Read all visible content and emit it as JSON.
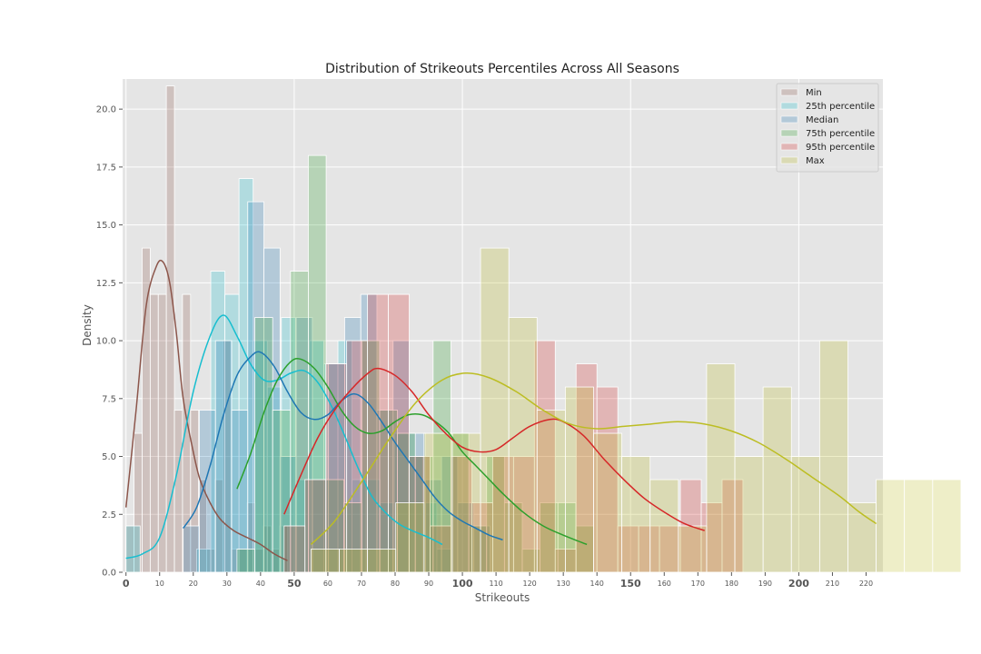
{
  "chart_data": {
    "type": "histogram",
    "title": "Distribution of Strikeouts Percentiles Across All Seasons",
    "xlabel": "Strikeouts",
    "ylabel": "Density",
    "xlim": [
      -1,
      225
    ],
    "ylim": [
      0,
      21.3
    ],
    "grid": true,
    "legend_position": "top-right",
    "x_ticks": [
      {
        "value": 0,
        "label": "0",
        "bold": true
      },
      {
        "value": 10,
        "label": "10",
        "bold": false
      },
      {
        "value": 20,
        "label": "20",
        "bold": false
      },
      {
        "value": 30,
        "label": "30",
        "bold": false
      },
      {
        "value": 40,
        "label": "40",
        "bold": false
      },
      {
        "value": 50,
        "label": "50",
        "bold": true
      },
      {
        "value": 60,
        "label": "60",
        "bold": false
      },
      {
        "value": 70,
        "label": "70",
        "bold": false
      },
      {
        "value": 80,
        "label": "80",
        "bold": false
      },
      {
        "value": 90,
        "label": "90",
        "bold": false
      },
      {
        "value": 100,
        "label": "100",
        "bold": true
      },
      {
        "value": 110,
        "label": "110",
        "bold": false
      },
      {
        "value": 120,
        "label": "120",
        "bold": false
      },
      {
        "value": 130,
        "label": "130",
        "bold": false
      },
      {
        "value": 140,
        "label": "140",
        "bold": false
      },
      {
        "value": 150,
        "label": "150",
        "bold": true
      },
      {
        "value": 160,
        "label": "160",
        "bold": false
      },
      {
        "value": 170,
        "label": "170",
        "bold": false
      },
      {
        "value": 180,
        "label": "180",
        "bold": false
      },
      {
        "value": 190,
        "label": "190",
        "bold": false
      },
      {
        "value": 200,
        "label": "200",
        "bold": true
      },
      {
        "value": 210,
        "label": "210",
        "bold": false
      },
      {
        "value": 220,
        "label": "220",
        "bold": false
      }
    ],
    "y_ticks": [
      {
        "value": 0,
        "label": "0.0"
      },
      {
        "value": 2.5,
        "label": "2.5"
      },
      {
        "value": 5,
        "label": "5.0"
      },
      {
        "value": 7.5,
        "label": "7.5"
      },
      {
        "value": 10,
        "label": "10.0"
      },
      {
        "value": 12.5,
        "label": "12.5"
      },
      {
        "value": 15,
        "label": "15.0"
      },
      {
        "value": 17.5,
        "label": "17.5"
      },
      {
        "value": 20,
        "label": "20.0"
      }
    ],
    "series": [
      {
        "name": "Min",
        "color": "#8c564b",
        "bin_start": 0,
        "bin_width": 2.4,
        "counts": [
          2,
          6,
          14,
          12,
          12,
          21,
          7,
          12,
          7,
          4,
          1,
          4,
          10,
          1,
          1,
          3,
          1,
          2,
          1,
          2
        ],
        "kde": [
          [
            0,
            2.8
          ],
          [
            3,
            7
          ],
          [
            6,
            11.5
          ],
          [
            9,
            13.2
          ],
          [
            11,
            13.4
          ],
          [
            13,
            12.5
          ],
          [
            15,
            10.3
          ],
          [
            17,
            7.5
          ],
          [
            20,
            5.2
          ],
          [
            22,
            4
          ],
          [
            25,
            3
          ],
          [
            28,
            2.3
          ],
          [
            32,
            1.8
          ],
          [
            36,
            1.5
          ],
          [
            40,
            1.2
          ],
          [
            44,
            0.8
          ],
          [
            48,
            0.5
          ]
        ]
      },
      {
        "name": "25th percentile",
        "color": "#17becf",
        "bin_start": 0,
        "bin_width": 4.2,
        "counts": [
          2,
          0,
          0,
          0,
          0,
          1,
          13,
          12,
          17,
          10,
          8,
          11,
          4,
          10,
          9,
          10,
          4,
          4,
          3,
          6,
          5,
          3,
          1
        ],
        "kde": [
          [
            0,
            0.6
          ],
          [
            5,
            0.8
          ],
          [
            10,
            1.5
          ],
          [
            15,
            4.2
          ],
          [
            20,
            7.8
          ],
          [
            25,
            10.2
          ],
          [
            29,
            11.1
          ],
          [
            33,
            10.2
          ],
          [
            37,
            9
          ],
          [
            41,
            8.3
          ],
          [
            45,
            8.3
          ],
          [
            49,
            8.6
          ],
          [
            53,
            8.7
          ],
          [
            57,
            8.2
          ],
          [
            61,
            7.2
          ],
          [
            65,
            5.9
          ],
          [
            69,
            4.5
          ],
          [
            73,
            3.3
          ],
          [
            77,
            2.6
          ],
          [
            81,
            2.1
          ],
          [
            85,
            1.8
          ],
          [
            90,
            1.5
          ],
          [
            94,
            1.2
          ]
        ]
      },
      {
        "name": "Median",
        "color": "#1f77b4",
        "bin_start": 17,
        "bin_width": 4.8,
        "counts": [
          2,
          7,
          10,
          7,
          16,
          14,
          5,
          11,
          4,
          9,
          11,
          12,
          7,
          10,
          6,
          4,
          5,
          3,
          2
        ],
        "kde": [
          [
            17,
            1.9
          ],
          [
            21,
            2.8
          ],
          [
            25,
            4.6
          ],
          [
            29,
            6.8
          ],
          [
            33,
            8.5
          ],
          [
            37,
            9.3
          ],
          [
            40,
            9.5
          ],
          [
            44,
            8.9
          ],
          [
            48,
            7.8
          ],
          [
            52,
            6.9
          ],
          [
            56,
            6.6
          ],
          [
            60,
            6.8
          ],
          [
            64,
            7.4
          ],
          [
            68,
            7.7
          ],
          [
            72,
            7.3
          ],
          [
            76,
            6.5
          ],
          [
            80,
            5.6
          ],
          [
            84,
            4.8
          ],
          [
            88,
            4
          ],
          [
            92,
            3.2
          ],
          [
            96,
            2.6
          ],
          [
            100,
            2.2
          ],
          [
            104,
            1.9
          ],
          [
            108,
            1.6
          ],
          [
            112,
            1.4
          ]
        ]
      },
      {
        "name": "75th percentile",
        "color": "#2ca02c",
        "bin_start": 33,
        "bin_width": 5.3,
        "counts": [
          1,
          11,
          7,
          13,
          18,
          4,
          3,
          10,
          7,
          6,
          5,
          10,
          6,
          2,
          5,
          3,
          1,
          3,
          3,
          2
        ],
        "kde": [
          [
            33,
            3.6
          ],
          [
            37,
            5.1
          ],
          [
            41,
            6.9
          ],
          [
            45,
            8.3
          ],
          [
            49,
            9.1
          ],
          [
            52,
            9.2
          ],
          [
            56,
            8.8
          ],
          [
            60,
            8
          ],
          [
            64,
            7
          ],
          [
            68,
            6.3
          ],
          [
            72,
            6
          ],
          [
            76,
            6.1
          ],
          [
            80,
            6.5
          ],
          [
            84,
            6.8
          ],
          [
            88,
            6.8
          ],
          [
            92,
            6.5
          ],
          [
            96,
            6
          ],
          [
            100,
            5.2
          ],
          [
            104,
            4.6
          ],
          [
            108,
            4
          ],
          [
            112,
            3.4
          ],
          [
            118,
            2.6
          ],
          [
            124,
            2
          ],
          [
            130,
            1.6
          ],
          [
            137,
            1.2
          ]
        ]
      },
      {
        "name": "95th percentile",
        "color": "#d62728",
        "bin_start": 47,
        "bin_width": 6.2,
        "counts": [
          2,
          4,
          9,
          10,
          12,
          12,
          5,
          2,
          5,
          3,
          5,
          5,
          10,
          1,
          9,
          8,
          2,
          2,
          2,
          4,
          3,
          4
        ],
        "kde": [
          [
            47,
            2.5
          ],
          [
            52,
            4.2
          ],
          [
            57,
            5.8
          ],
          [
            62,
            7
          ],
          [
            67,
            7.9
          ],
          [
            72,
            8.6
          ],
          [
            75,
            8.8
          ],
          [
            80,
            8.5
          ],
          [
            85,
            7.8
          ],
          [
            90,
            6.8
          ],
          [
            95,
            6
          ],
          [
            100,
            5.4
          ],
          [
            105,
            5.2
          ],
          [
            110,
            5.3
          ],
          [
            115,
            5.8
          ],
          [
            120,
            6.3
          ],
          [
            126,
            6.6
          ],
          [
            130,
            6.5
          ],
          [
            136,
            5.9
          ],
          [
            142,
            4.9
          ],
          [
            148,
            4
          ],
          [
            154,
            3.2
          ],
          [
            160,
            2.6
          ],
          [
            166,
            2.1
          ],
          [
            172,
            1.8
          ]
        ]
      },
      {
        "name": "Max",
        "color": "#bcbd22",
        "bin_start": 55,
        "bin_width": 8.4,
        "counts": [
          1,
          1,
          1,
          3,
          6,
          6,
          14,
          11,
          7,
          8,
          6,
          5,
          4,
          2,
          9,
          5,
          8,
          5,
          10,
          3,
          4,
          4,
          4
        ],
        "kde": [
          [
            55,
            1.2
          ],
          [
            62,
            2.2
          ],
          [
            70,
            3.9
          ],
          [
            78,
            5.7
          ],
          [
            86,
            7.3
          ],
          [
            94,
            8.3
          ],
          [
            101,
            8.6
          ],
          [
            108,
            8.4
          ],
          [
            116,
            7.8
          ],
          [
            124,
            7
          ],
          [
            132,
            6.4
          ],
          [
            140,
            6.2
          ],
          [
            148,
            6.3
          ],
          [
            156,
            6.4
          ],
          [
            164,
            6.5
          ],
          [
            172,
            6.4
          ],
          [
            180,
            6.1
          ],
          [
            188,
            5.6
          ],
          [
            196,
            4.9
          ],
          [
            204,
            4.1
          ],
          [
            212,
            3.3
          ],
          [
            218,
            2.6
          ],
          [
            223,
            2.1
          ]
        ]
      }
    ]
  }
}
